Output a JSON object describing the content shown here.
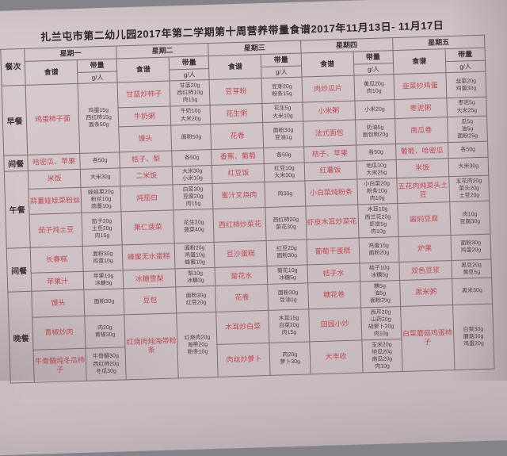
{
  "title": "扎兰屯市第二幼儿园2017年第二学期第十周营养带量食谱2017年11月13日- 11月17日",
  "header": {
    "meal_col": "餐次",
    "days": [
      "星期一",
      "星期二",
      "星期三",
      "星期四",
      "星期五"
    ],
    "recipe": "食谱",
    "amount": "带量",
    "per_person": "g/人"
  },
  "colors": {
    "dish_red": "#c24a55",
    "ink": "#3a3134",
    "paper": "#cfc3c7"
  },
  "sections": [
    {
      "meal": "早餐",
      "rows": 3,
      "days": [
        [
          {
            "dish": "鸡蛋柿子面",
            "amt": [
              "鸡蛋15g",
              "西红柿15g",
              "面条50g"
            ],
            "span": 3
          }
        ],
        [
          {
            "dish": "甘蓝炒柿子",
            "amt": [
              "甘蓝20g",
              "西红柿10g",
              "肉15g"
            ]
          },
          {
            "dish": "牛奶粥",
            "amt": [
              "牛奶10g",
              "大米20g"
            ]
          },
          {
            "dish": "馒头",
            "amt": [
              "面粉50g"
            ]
          }
        ],
        [
          {
            "dish": "豆芽粉",
            "amt": [
              "豆芽20g",
              "粉条15g"
            ]
          },
          {
            "dish": "花生粥",
            "amt": [
              "花生5g",
              "大米10g"
            ]
          },
          {
            "dish": "花卷",
            "amt": [
              "面粉30g",
              "豆油1g"
            ]
          }
        ],
        [
          {
            "dish": "肉炒瓜片",
            "amt": [
              "黄瓜20g",
              "肉10g"
            ]
          },
          {
            "dish": "小米粥",
            "amt": [
              "小米20g"
            ]
          },
          {
            "dish": "法式面包",
            "amt": [
              "奶油5g",
              "面包粉20g"
            ]
          }
        ],
        [
          {
            "dish": "韭菜炒鸡蛋",
            "amt": [
              "韭菜20g",
              "鸡蛋30g"
            ]
          },
          {
            "dish": "枣泥粥",
            "amt": [
              "枣泥5g",
              "大米25g"
            ]
          },
          {
            "dish": "南瓜卷",
            "amt": [
              "瓜5g",
              "油5g",
              "面粉25g"
            ]
          }
        ]
      ]
    },
    {
      "meal": "间餐",
      "rows": 1,
      "days": [
        [
          {
            "dish": "哈密瓜、苹果",
            "amt": [
              "各50g"
            ]
          }
        ],
        [
          {
            "dish": "桔子、梨",
            "amt": [
              "各50g"
            ]
          }
        ],
        [
          {
            "dish": "香蕉、葡萄",
            "amt": [
              "各50g"
            ]
          }
        ],
        [
          {
            "dish": "桔子、苹果",
            "amt": [
              "各50g"
            ]
          }
        ],
        [
          {
            "dish": "葡萄、哈密瓜",
            "amt": [
              "各50g"
            ]
          }
        ]
      ]
    },
    {
      "meal": "午餐",
      "rows": 3,
      "days": [
        [
          {
            "dish": "米饭",
            "amt": [
              "大米30g"
            ]
          },
          {
            "dish": "蒜薹娃娃菜粉丝",
            "amt": [
              "娃娃菜20g",
              "粉丝10g",
              "蒜薹10g"
            ]
          },
          {
            "dish": "茄子炖土豆",
            "amt": [
              "茄子20g",
              "土豆20g",
              "肉15g"
            ]
          }
        ],
        [
          {
            "dish": "二米饭",
            "amt": [
              "大米30g",
              "小米10g"
            ]
          },
          {
            "dish": "炖茄白",
            "amt": [
              "白菜30g",
              "豆腐20g",
              "肉15g"
            ]
          },
          {
            "dish": "果仁菠菜",
            "amt": [
              "花生20g",
              "菠菜40g"
            ]
          }
        ],
        [
          {
            "dish": "红豆饭",
            "amt": [
              "红豆10g",
              "大米30g"
            ]
          },
          {
            "dish": "蜜汁叉烧肉",
            "amt": [
              "肉30g"
            ]
          },
          {
            "dish": "西红柿炒菜花",
            "amt": [
              "西红柿20g",
              "菜花30g"
            ]
          }
        ],
        [
          {
            "dish": "红薯饭",
            "amt": [
              "地瓜10g",
              "大米25g"
            ]
          },
          {
            "dish": "小白菜炖粉条",
            "amt": [
              "小白菜20g",
              "粉条10g",
              "肉10g"
            ]
          },
          {
            "dish": "虾皮木耳炒菜花",
            "amt": [
              "木耳10g",
              "西兰花20g",
              "虾皮5g",
              "肉10g"
            ]
          }
        ],
        [
          {
            "dish": "米饭",
            "amt": [
              "大米30g"
            ]
          },
          {
            "dish": "五花肉炖菜头土豆",
            "amt": [
              "五花肉20g",
              "菜头20g",
              "土豆20g"
            ]
          },
          {
            "dish": "酱焖豆腐",
            "amt": [
              "肉10g",
              "豆腐30g"
            ]
          }
        ]
      ]
    },
    {
      "meal": "间餐",
      "rows": 2,
      "days": [
        [
          {
            "dish": "长春糕",
            "amt": [
              "面粉30g",
              "鸡蛋10g"
            ]
          },
          {
            "dish": "苹果汁",
            "amt": [
              "苹果10g",
              "冰糖3g"
            ]
          }
        ],
        [
          {
            "dish": "蜂蜜无水蛋糕",
            "amt": [
              "面粉20g",
              "鸡蛋10g",
              "蜂蜜10g"
            ]
          },
          {
            "dish": "冰糖雪梨",
            "amt": [
              "梨10g",
              "冰糖3g"
            ]
          }
        ],
        [
          {
            "dish": "豆沙蛋糕",
            "amt": [
              "红豆20g",
              "面粉30g"
            ]
          },
          {
            "dish": "菊花水",
            "amt": [
              "菊花10g",
              "冰糖5g"
            ]
          }
        ],
        [
          {
            "dish": "葡萄干蛋糕",
            "amt": [
              "鸡蛋15g",
              "面粉20g"
            ]
          },
          {
            "dish": "桔子水",
            "amt": [
              "桔子10g",
              "冰糖5g"
            ]
          }
        ],
        [
          {
            "dish": "炉果",
            "amt": [
              "面粉30g",
              "鸡蛋20g"
            ]
          },
          {
            "dish": "双色豆浆",
            "amt": [
              "黑豆20g",
              "黄豆5g"
            ]
          }
        ]
      ]
    },
    {
      "meal": "晚餐",
      "rows": 3,
      "days": [
        [
          {
            "dish": "馒头",
            "amt": [
              "面粉30g"
            ]
          },
          {
            "dish": "青椒炒肉",
            "amt": [
              "肉20g",
              "青椒30g"
            ]
          },
          {
            "dish": "牛骨髓炖冬瓜柿子",
            "amt": [
              "牛骨髓30g",
              "西红柿20g",
              "冬瓜30g"
            ]
          }
        ],
        [
          {
            "dish": "豆包",
            "amt": [
              "面粉30g",
              "红豆20g"
            ]
          },
          {
            "dish": "红烧肉炖海带粉条",
            "amt": [
              "红烧肉20g",
              "海带20g",
              "粉条10g"
            ],
            "span": 2
          }
        ],
        [
          {
            "dish": "花卷",
            "amt": [
              "面粉30g",
              "豆油1g"
            ]
          },
          {
            "dish": "木耳炒白菜",
            "amt": [
              "木耳15g",
              "白菜20g",
              "肉15g"
            ]
          },
          {
            "dish": "肉丝炒萝卜",
            "amt": [
              "肉20g",
              "萝卜30g"
            ]
          }
        ],
        [
          {
            "dish": "糖花卷",
            "amt": [
              "糖5g",
              "油5g",
              "面粉25g"
            ]
          },
          {
            "dish": "田园小炒",
            "amt": [
              "西芹20g",
              "山药20g",
              "胡萝卜20g",
              "肉10g"
            ]
          },
          {
            "dish": "大丰收",
            "amt": [
              "玉米20g",
              "地瓜20g",
              "南瓜20g",
              "肉10g"
            ]
          }
        ],
        [
          {
            "dish": "黑米粥",
            "amt": [
              "黑米30g"
            ]
          },
          {
            "dish": "白菜蘑菇鸡蛋柿子",
            "amt": [
              "白菜30g",
              "蘑菇30g",
              "鸡蛋20g"
            ],
            "span": 2
          }
        ]
      ]
    }
  ]
}
